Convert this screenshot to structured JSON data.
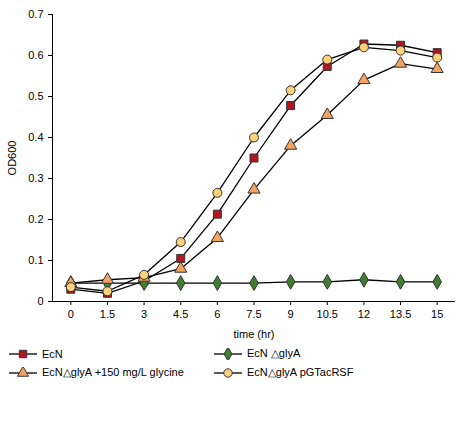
{
  "chart_data": {
    "type": "line",
    "x_label": "time (hr)",
    "y_label": "OD600",
    "x": [
      0,
      1.5,
      3,
      4.5,
      6,
      7.5,
      9,
      10.5,
      12,
      13.5,
      15
    ],
    "xlim": [
      -0.75,
      15.75
    ],
    "xticks": [
      0,
      1.5,
      3,
      4.5,
      6,
      7.5,
      9,
      10.5,
      12,
      13.5,
      15
    ],
    "ylim": [
      0,
      0.7
    ],
    "yticks": [
      0,
      0.1,
      0.2,
      0.3,
      0.4,
      0.5,
      0.6,
      0.7
    ],
    "grid": false,
    "legend": "bottom",
    "series": [
      {
        "name": "EcN",
        "color": "#b0171f",
        "marker": "square",
        "line_style": "solid",
        "values": [
          0.03,
          0.02,
          0.05,
          0.105,
          0.213,
          0.35,
          0.478,
          0.573,
          0.628,
          0.625,
          0.607
        ]
      },
      {
        "name": "EcN △glyA",
        "color": "#3f7f2f",
        "marker": "diamond",
        "line_style": "solid",
        "values": [
          0.045,
          0.045,
          0.045,
          0.045,
          0.045,
          0.045,
          0.048,
          0.048,
          0.053,
          0.048,
          0.048
        ]
      },
      {
        "name": "EcN△glyA +150 mg/L glycine",
        "color": "#f4a460",
        "marker": "triangle",
        "line_style": "solid",
        "values": [
          0.045,
          0.053,
          0.058,
          0.08,
          0.155,
          0.273,
          0.38,
          0.455,
          0.54,
          0.58,
          0.567
        ]
      },
      {
        "name": "EcN△glyA pGTacRSF",
        "color": "#ffd27a",
        "marker": "circle",
        "line_style": "solid",
        "values": [
          0.035,
          0.025,
          0.065,
          0.145,
          0.265,
          0.4,
          0.515,
          0.59,
          0.62,
          0.612,
          0.595
        ]
      }
    ]
  }
}
